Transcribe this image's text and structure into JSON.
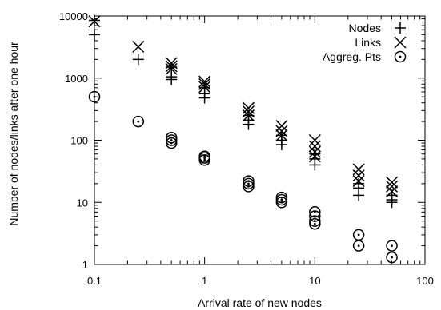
{
  "chart_data": {
    "type": "scatter",
    "xlabel": "Arrival rate of new nodes",
    "ylabel": "Number of nodes/links after one hour",
    "xscale": "log",
    "yscale": "log",
    "xlim": [
      0.1,
      100
    ],
    "ylim": [
      1,
      10000
    ],
    "x_ticks": [
      {
        "value": 0.1,
        "label": "0.1"
      },
      {
        "value": 1,
        "label": "1"
      },
      {
        "value": 10,
        "label": "10"
      },
      {
        "value": 100,
        "label": "100"
      }
    ],
    "y_ticks": [
      {
        "value": 1,
        "label": "1"
      },
      {
        "value": 10,
        "label": "10"
      },
      {
        "value": 100,
        "label": "100"
      },
      {
        "value": 1000,
        "label": "1000"
      },
      {
        "value": 10000,
        "label": "10000"
      }
    ],
    "legend_position": "top-right",
    "series": [
      {
        "name": "Nodes",
        "marker": "plus",
        "points": [
          {
            "x": 0.1,
            "y": 5000
          },
          {
            "x": 0.1,
            "y": 8500
          },
          {
            "x": 0.25,
            "y": 2000
          },
          {
            "x": 0.5,
            "y": 950
          },
          {
            "x": 0.5,
            "y": 1050
          },
          {
            "x": 0.5,
            "y": 1500
          },
          {
            "x": 1,
            "y": 480
          },
          {
            "x": 1,
            "y": 560
          },
          {
            "x": 1,
            "y": 700
          },
          {
            "x": 2.5,
            "y": 180
          },
          {
            "x": 2.5,
            "y": 210
          },
          {
            "x": 2.5,
            "y": 250
          },
          {
            "x": 5,
            "y": 85
          },
          {
            "x": 5,
            "y": 100
          },
          {
            "x": 5,
            "y": 120
          },
          {
            "x": 10,
            "y": 40
          },
          {
            "x": 10,
            "y": 50
          },
          {
            "x": 10,
            "y": 60
          },
          {
            "x": 25,
            "y": 13
          },
          {
            "x": 25,
            "y": 17
          },
          {
            "x": 25,
            "y": 20
          },
          {
            "x": 50,
            "y": 10
          },
          {
            "x": 50,
            "y": 11
          },
          {
            "x": 50,
            "y": 13
          }
        ]
      },
      {
        "name": "Links",
        "marker": "cross",
        "points": [
          {
            "x": 0.1,
            "y": 8200
          },
          {
            "x": 0.25,
            "y": 3200
          },
          {
            "x": 0.5,
            "y": 1400
          },
          {
            "x": 0.5,
            "y": 1550
          },
          {
            "x": 0.5,
            "y": 1750
          },
          {
            "x": 1,
            "y": 720
          },
          {
            "x": 1,
            "y": 800
          },
          {
            "x": 1,
            "y": 880
          },
          {
            "x": 2.5,
            "y": 250
          },
          {
            "x": 2.5,
            "y": 290
          },
          {
            "x": 2.5,
            "y": 330
          },
          {
            "x": 5,
            "y": 120
          },
          {
            "x": 5,
            "y": 140
          },
          {
            "x": 5,
            "y": 170
          },
          {
            "x": 10,
            "y": 55
          },
          {
            "x": 10,
            "y": 65
          },
          {
            "x": 10,
            "y": 80
          },
          {
            "x": 10,
            "y": 100
          },
          {
            "x": 25,
            "y": 22
          },
          {
            "x": 25,
            "y": 27
          },
          {
            "x": 25,
            "y": 34
          },
          {
            "x": 50,
            "y": 15
          },
          {
            "x": 50,
            "y": 18
          },
          {
            "x": 50,
            "y": 21
          }
        ]
      },
      {
        "name": "Aggreg. Pts",
        "marker": "circle-dot",
        "points": [
          {
            "x": 0.1,
            "y": 500
          },
          {
            "x": 0.25,
            "y": 200
          },
          {
            "x": 0.5,
            "y": 90
          },
          {
            "x": 0.5,
            "y": 100
          },
          {
            "x": 0.5,
            "y": 110
          },
          {
            "x": 1,
            "y": 48
          },
          {
            "x": 1,
            "y": 52
          },
          {
            "x": 1,
            "y": 55
          },
          {
            "x": 2.5,
            "y": 18
          },
          {
            "x": 2.5,
            "y": 20
          },
          {
            "x": 2.5,
            "y": 22
          },
          {
            "x": 5,
            "y": 10
          },
          {
            "x": 5,
            "y": 11
          },
          {
            "x": 5,
            "y": 12
          },
          {
            "x": 10,
            "y": 4.5
          },
          {
            "x": 10,
            "y": 5
          },
          {
            "x": 10,
            "y": 6
          },
          {
            "x": 10,
            "y": 7
          },
          {
            "x": 25,
            "y": 2
          },
          {
            "x": 25,
            "y": 3
          },
          {
            "x": 50,
            "y": 1.3
          },
          {
            "x": 50,
            "y": 2
          }
        ]
      }
    ]
  }
}
